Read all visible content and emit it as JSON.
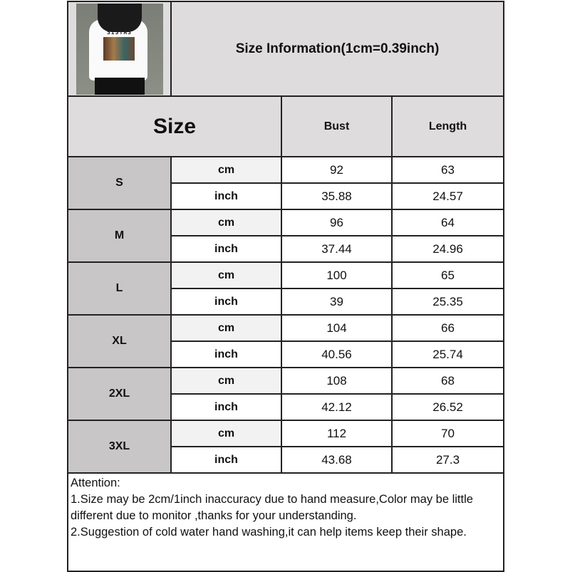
{
  "header": {
    "title": "Size Information(1cm=0.39inch)",
    "photo_text": "SISTAS"
  },
  "columns": {
    "size": "Size",
    "bust": "Bust",
    "length": "Length"
  },
  "rows": [
    {
      "size": "S",
      "cm_label": "cm",
      "inch_label": "inch",
      "cm": {
        "bust": "92",
        "length": "63"
      },
      "inch": {
        "bust": "35.88",
        "length": "24.57"
      }
    },
    {
      "size": "M",
      "cm_label": "cm",
      "inch_label": "inch",
      "cm": {
        "bust": "96",
        "length": "64"
      },
      "inch": {
        "bust": "37.44",
        "length": "24.96"
      }
    },
    {
      "size": "L",
      "cm_label": "cm",
      "inch_label": "inch",
      "cm": {
        "bust": "100",
        "length": "65"
      },
      "inch": {
        "bust": "39",
        "length": "25.35"
      }
    },
    {
      "size": "XL",
      "cm_label": "cm",
      "inch_label": "inch",
      "cm": {
        "bust": "104",
        "length": "66"
      },
      "inch": {
        "bust": "40.56",
        "length": "25.74"
      }
    },
    {
      "size": "2XL",
      "cm_label": "cm",
      "inch_label": "inch",
      "cm": {
        "bust": "108",
        "length": "68"
      },
      "inch": {
        "bust": "42.12",
        "length": "26.52"
      }
    },
    {
      "size": "3XL",
      "cm_label": "cm",
      "inch_label": "inch",
      "cm": {
        "bust": "112",
        "length": "70"
      },
      "inch": {
        "bust": "43.68",
        "length": "27.3"
      }
    }
  ],
  "notes": {
    "heading": "Attention:",
    "line1": "1.Size may be 2cm/1inch inaccuracy due to hand measure,Color may be little different due to monitor ,thanks for your understanding.",
    "line2": "2.Suggestion of cold water hand washing,it can help items keep their shape."
  }
}
